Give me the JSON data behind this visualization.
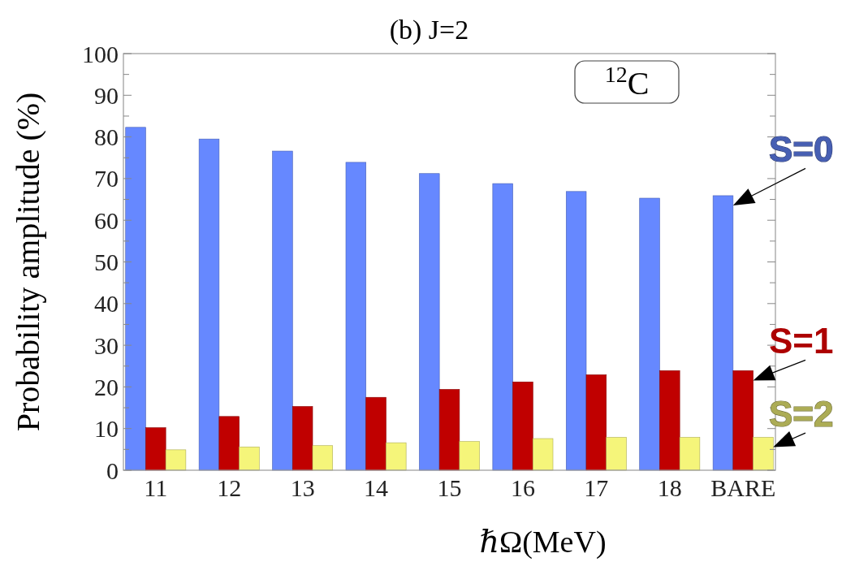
{
  "chart_data": {
    "type": "bar",
    "title": "(b) J=2",
    "xlabel": "ℏΩ(MeV)",
    "ylabel": "Probability amplitude (%)",
    "categories": [
      "11",
      "12",
      "13",
      "14",
      "15",
      "16",
      "17",
      "18",
      "BARE"
    ],
    "series": [
      {
        "name": "S=0",
        "color": "#6688ff",
        "values": [
          82.3,
          79.5,
          76.6,
          73.9,
          71.2,
          68.8,
          66.9,
          65.3,
          65.9
        ]
      },
      {
        "name": "S=1",
        "color": "#c00000",
        "values": [
          10.2,
          12.9,
          15.3,
          17.5,
          19.4,
          21.2,
          22.9,
          23.9,
          23.9
        ]
      },
      {
        "name": "S=2",
        "color": "#f5f57a",
        "values": [
          4.9,
          5.6,
          5.9,
          6.6,
          6.9,
          7.6,
          7.9,
          7.9,
          7.9
        ]
      }
    ],
    "ylim": [
      0,
      100
    ],
    "yticks": [
      0,
      {
        "value": 5,
        "label": null
      },
      10,
      {
        "value": 15,
        "label": null
      },
      20,
      {
        "value": 25,
        "label": null
      },
      30,
      {
        "value": 35,
        "label": null
      },
      40,
      {
        "value": 45,
        "label": null
      },
      50,
      {
        "value": 55,
        "label": null
      },
      60,
      {
        "value": 65,
        "label": null
      },
      70,
      {
        "value": 75,
        "label": null
      },
      80,
      {
        "value": 85,
        "label": null
      },
      90,
      {
        "value": 95,
        "label": null
      },
      100
    ],
    "annotations": [
      "$^{12}$C"
    ],
    "legend": false,
    "grid": false
  }
}
